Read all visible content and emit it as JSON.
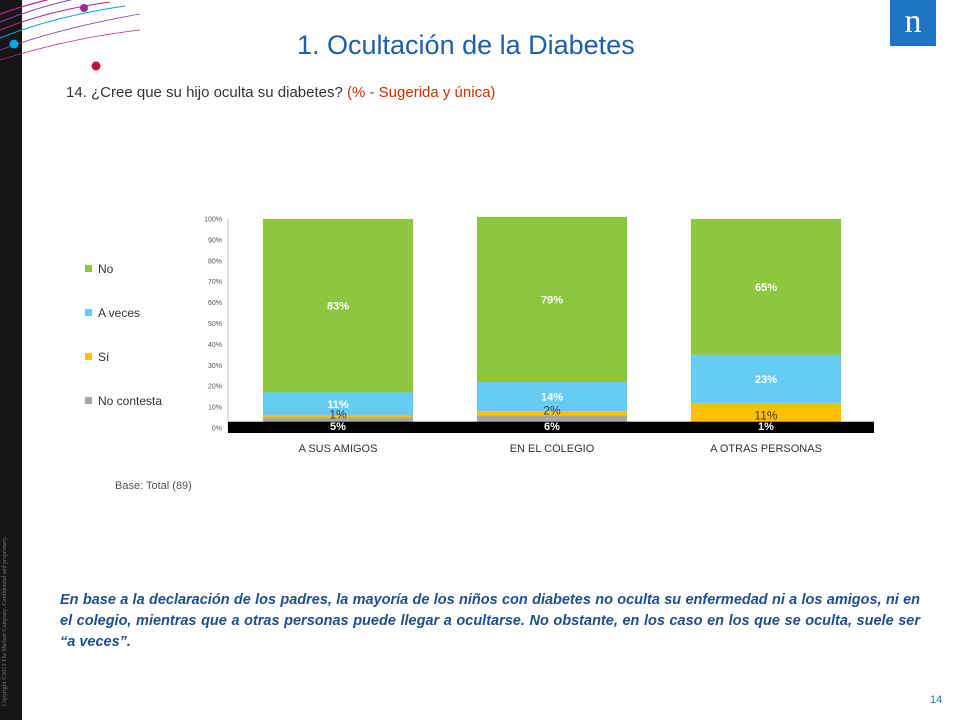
{
  "header": {
    "title": "1. Ocultación de la Diabetes",
    "question": "14. ¿Cree que su hijo oculta su diabetes?",
    "question_note": "(% - Sugerida y única)",
    "logo_letter": "n"
  },
  "chart_data": {
    "type": "bar",
    "stacked": true,
    "percent_stacked": true,
    "categories": [
      "A SUS AMIGOS",
      "EN EL COLEGIO",
      "A OTRAS PERSONAS"
    ],
    "series": [
      {
        "name": "No contesta",
        "values": [
          5,
          6,
          1
        ],
        "labels": [
          "5%",
          "6%",
          "1%"
        ],
        "color": "#a6a6a6"
      },
      {
        "name": "Sí",
        "values": [
          1,
          2,
          11
        ],
        "labels": [
          "1%",
          "2%",
          "11%"
        ],
        "color": "#ffc000"
      },
      {
        "name": "A veces",
        "values": [
          11,
          14,
          23
        ],
        "labels": [
          "11%",
          "14%",
          "23%"
        ],
        "color": "#66ccf5"
      },
      {
        "name": "No",
        "values": [
          83,
          79,
          65
        ],
        "labels": [
          "83%",
          "79%",
          "65%"
        ],
        "color": "#8dc63f"
      }
    ],
    "y_ticks": [
      "0%",
      "10%",
      "20%",
      "30%",
      "40%",
      "50%",
      "60%",
      "70%",
      "80%",
      "90%",
      "100%"
    ],
    "ylim": [
      0,
      100
    ],
    "legend": [
      "No",
      "A veces",
      "Sí",
      "No contesta"
    ],
    "legend_position": "left",
    "grid": false
  },
  "footer": {
    "base_note": "Base: Total (89)",
    "summary": "En base a la declaración de los padres, la mayoría de los niños con diabetes no oculta su enfermedad ni a los amigos, ni en el colegio, mientras que a otras personas puede llegar a ocultarse. No obstante, en los caso en los que se oculta, suele ser “a veces”.",
    "page_number": "14",
    "copyright": "Copyright ©2012 The Nielsen Company. Confidential and proprietary."
  }
}
